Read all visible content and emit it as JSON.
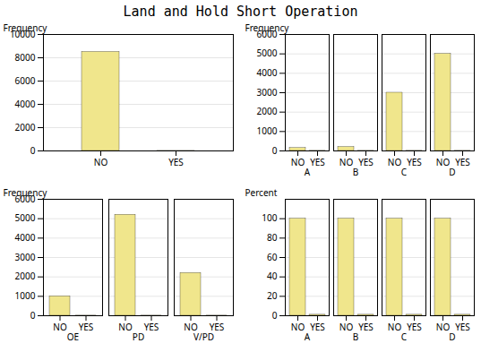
{
  "title": "Land and Hold Short Operation",
  "chart_data": [
    {
      "type": "bar",
      "categories": [
        "NO",
        "YES"
      ],
      "values": [
        8500,
        5
      ],
      "color": "#f0e68c",
      "ylabel": "Frequency",
      "ylim": [
        0,
        10000
      ],
      "yticks": [
        0,
        2000,
        4000,
        6000,
        8000,
        10000
      ],
      "grid": true
    },
    {
      "type": "bar",
      "categories": [
        "A",
        "B",
        "C",
        "D"
      ],
      "color": "#f0e68c",
      "series": [
        {
          "name": "NO",
          "values": [
            150,
            200,
            3000,
            5000
          ]
        },
        {
          "name": "YES",
          "values": [
            5,
            5,
            5,
            5
          ]
        }
      ],
      "ylabel": "Frequency",
      "ylim": [
        0,
        6000
      ],
      "yticks": [
        0,
        1000,
        2000,
        3000,
        4000,
        5000,
        6000
      ],
      "grid": true
    },
    {
      "type": "bar",
      "categories": [
        "OE",
        "PD",
        "V/PD"
      ],
      "color": "#f0e68c",
      "series": [
        {
          "name": "NO",
          "values": [
            1000,
            5200,
            2200
          ]
        },
        {
          "name": "YES",
          "values": [
            5,
            5,
            5
          ]
        }
      ],
      "ylabel": "Frequency",
      "ylim": [
        0,
        6000
      ],
      "yticks": [
        0,
        1000,
        2000,
        3000,
        4000,
        5000,
        6000
      ],
      "grid": true
    },
    {
      "type": "bar",
      "categories": [
        "A",
        "B",
        "C",
        "D"
      ],
      "color": "#f0e68c",
      "series": [
        {
          "name": "NO",
          "values": [
            100,
            100,
            100,
            100
          ]
        },
        {
          "name": "YES",
          "values": [
            1,
            1,
            1,
            1
          ]
        }
      ],
      "ylabel": "Percent",
      "ylim": [
        0,
        120
      ],
      "yticks": [
        0,
        20,
        40,
        60,
        80,
        100
      ],
      "grid": true
    }
  ]
}
